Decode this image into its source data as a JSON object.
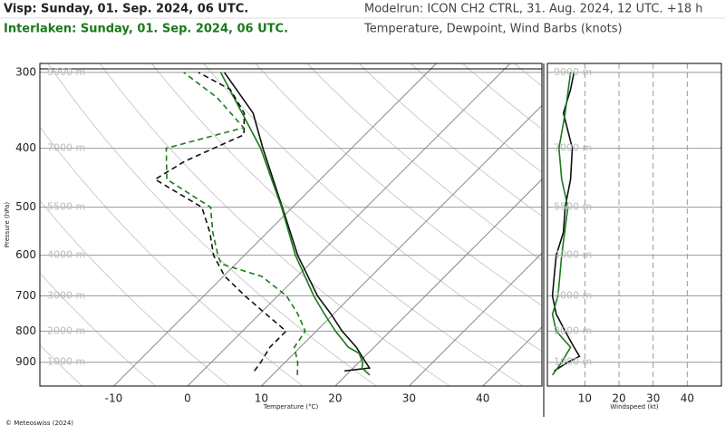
{
  "chart_data": [
    {
      "type": "line",
      "title": "Modelrun: ICON CH2 CTRL, 31. Aug. 2024, 12 UTC. +18 h",
      "subtitle": "Temperature, Dewpoint, Wind Barbs (knots)",
      "x_label": "Temperature (°C)",
      "y_label": "Pressure (hPa)",
      "xlim": [
        -20,
        48
      ],
      "xticks": [
        -10,
        0,
        10,
        20,
        30,
        40
      ],
      "ylim": [
        985,
        290
      ],
      "yticks": [
        300,
        400,
        500,
        600,
        700,
        800,
        900
      ],
      "y_log": true,
      "height_labels": [
        "9000 m",
        "7000 m",
        "5500 m",
        "4000 m",
        "3000 m",
        "2000 m",
        "1000 m"
      ],
      "series": [
        {
          "name": "Visp: Sunday, 01. Sep. 2024, 06 UTC.",
          "color": "#111111",
          "dashed": false,
          "pressure": [
            930,
            920,
            900,
            850,
            800,
            750,
            700,
            600,
            500,
            400,
            350,
            300
          ],
          "values": [
            19.2,
            22.2,
            20.9,
            17.6,
            13.5,
            9.7,
            5.4,
            -2.8,
            -11.4,
            -22.0,
            -28.1,
            -37.5
          ]
        },
        {
          "name": "Interlaken: Sunday, 01. Sep. 2024, 06 UTC.",
          "color": "#1a7a1a",
          "dashed": false,
          "pressure": [
            945,
            920,
            900,
            870,
            850,
            800,
            750,
            700,
            600,
            500,
            400,
            300
          ],
          "values": [
            23.2,
            21.2,
            20.5,
            18.8,
            16.5,
            12.6,
            8.8,
            4.9,
            -3.1,
            -11.5,
            -22.3,
            -38
          ]
        },
        {
          "color": "#111111",
          "dashed": true,
          "pressure": [
            930,
            900,
            850,
            800,
            750,
            700,
            650,
            600,
            550,
            500,
            450,
            420,
            380,
            350,
            320,
            300
          ],
          "values": [
            7.0,
            6.7,
            5.9,
            5.9,
            0.9,
            -4.4,
            -9.8,
            -14.2,
            -17.8,
            -22.3,
            -32.4,
            -30.8,
            -26.4,
            -29.3,
            -34.4,
            -41
          ]
        },
        {
          "color": "#1a7a1a",
          "dashed": true,
          "pressure": [
            945,
            900,
            850,
            800,
            750,
            700,
            650,
            620,
            600,
            550,
            500,
            450,
            400,
            370,
            330,
            300
          ],
          "values": [
            13.4,
            11.7,
            9.2,
            8.5,
            5.2,
            1.2,
            -4.8,
            -12.0,
            -13.6,
            -17.4,
            -21.1,
            -30.8,
            -35.1,
            -27.4,
            -35.1,
            -43
          ]
        }
      ]
    },
    {
      "type": "line",
      "x_label": "Windspeed (kt)",
      "xlim": [
        -1,
        50
      ],
      "xticks": [
        10,
        20,
        30,
        40
      ],
      "series": [
        {
          "color": "#111111",
          "pressure": [
            930,
            900,
            880,
            850,
            800,
            750,
            700,
            650,
            600,
            550,
            500,
            450,
            400,
            350,
            320,
            300
          ],
          "values": [
            1,
            5,
            8.4,
            6.8,
            4.2,
            1.6,
            0.5,
            1,
            1.6,
            3.7,
            4.2,
            5.8,
            6.3,
            3.7,
            5.8,
            6.8
          ]
        },
        {
          "color": "#1a7a1a",
          "pressure": [
            945,
            900,
            850,
            800,
            750,
            700,
            600,
            500,
            450,
            400,
            350,
            300
          ],
          "values": [
            0.5,
            3.2,
            5.8,
            1.6,
            0.5,
            2.1,
            3.2,
            5,
            3.2,
            2.4,
            4.2,
            5.8
          ]
        }
      ]
    }
  ],
  "footer": "© Meteoswiss (2024)"
}
